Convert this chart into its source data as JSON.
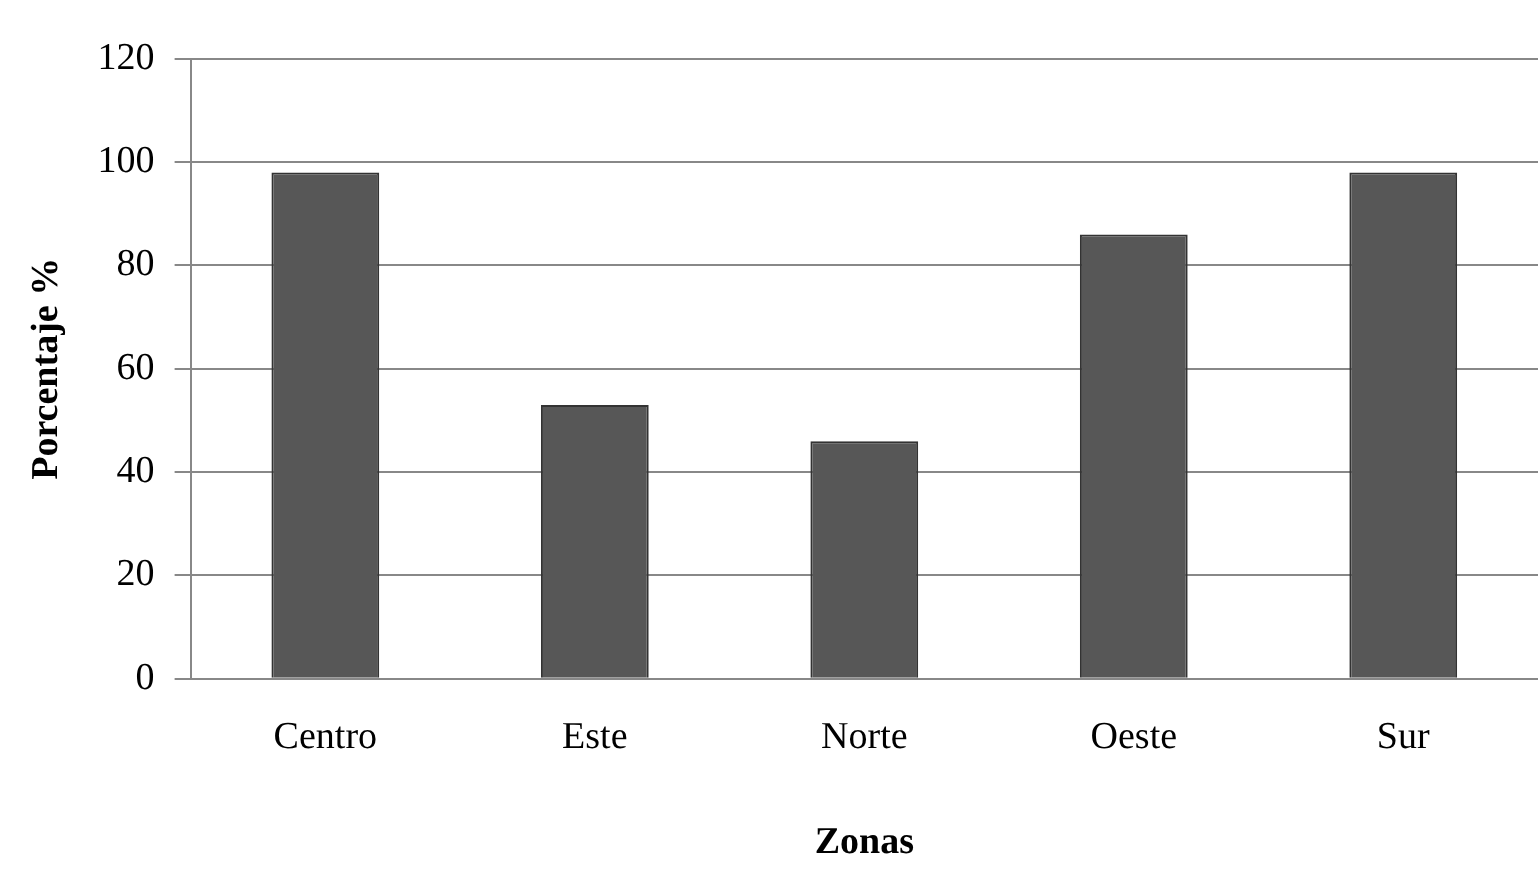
{
  "chart_data": {
    "type": "bar",
    "xlabel": "Zonas",
    "ylabel": "Porcentaje %",
    "categories": [
      "Centro",
      "Este",
      "Norte",
      "Oeste",
      "Sur"
    ],
    "values": [
      98,
      53,
      46,
      86,
      98
    ],
    "color": "#575757",
    "ylim": [
      0,
      120
    ],
    "yticks": [
      0,
      20,
      40,
      60,
      80,
      100,
      120
    ],
    "grid": "y"
  }
}
